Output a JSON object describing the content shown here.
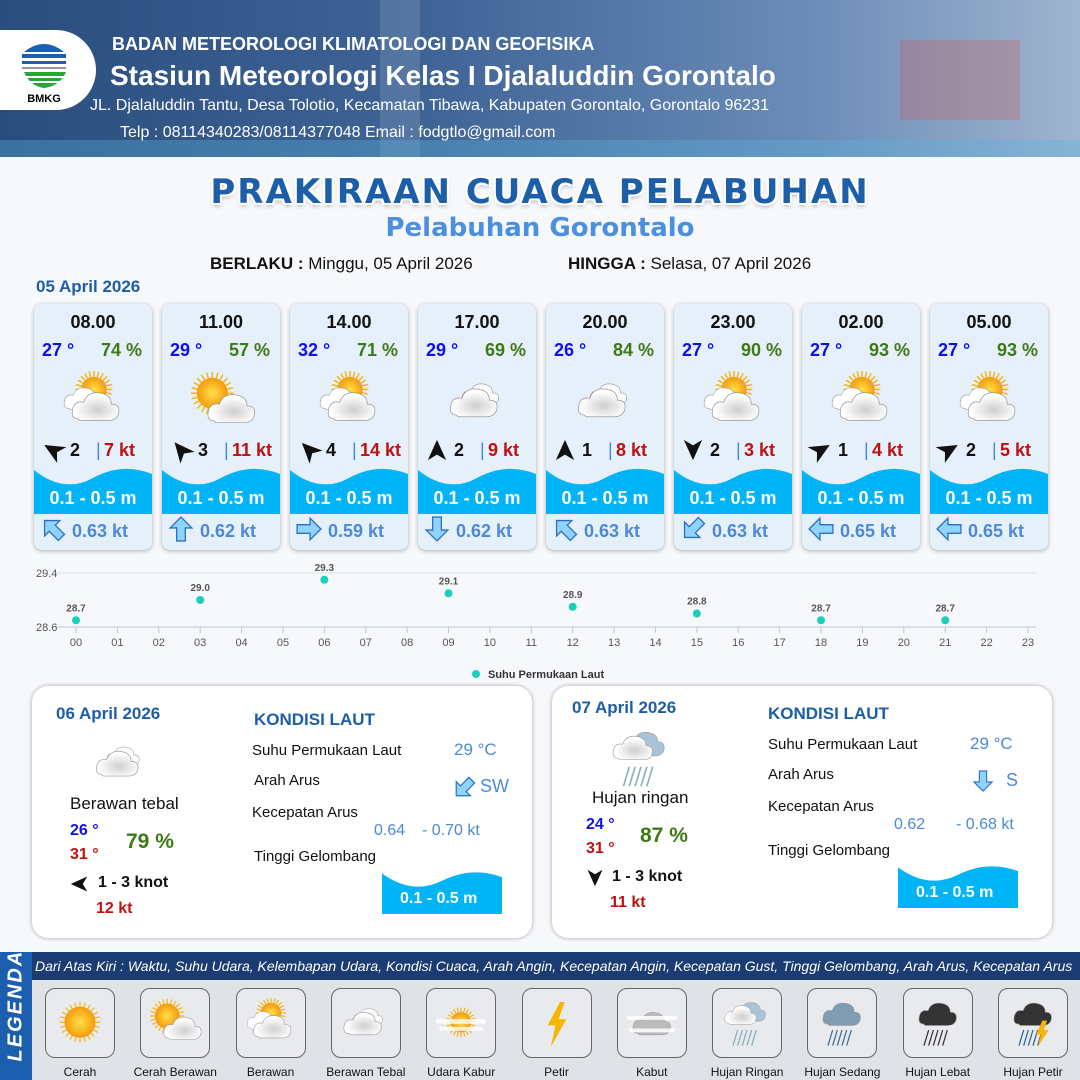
{
  "header": {
    "org": "BADAN METEOROLOGI KLIMATOLOGI DAN GEOFISIKA",
    "station": "Stasiun Meteorologi Kelas I Djalaluddin Gorontalo",
    "address": "JL. Djalaluddin Tantu, Desa Tolotio, Kecamatan Tibawa, Kabupaten Gorontalo, Gorontalo 96231",
    "contact": "Telp : 08114340283/08114377048 Email : fodgtlo@gmail.com",
    "logo_text": "BMKG"
  },
  "title": "PRAKIRAAN CUACA PELABUHAN",
  "subtitle": "Pelabuhan Gorontalo",
  "validity": {
    "from_label": "BERLAKU :",
    "from": "Minggu, 05 April 2026",
    "to_label": "HINGGA :",
    "to": "Selasa, 07 April 2026"
  },
  "day1_date": "05 April 2026",
  "colors": {
    "temp": "#1010ee",
    "humidity": "#3d7a16",
    "gust": "#c01010",
    "wave": "#00b4f5",
    "current": "#4a8ad8",
    "accent": "#1d5ea8"
  },
  "forecast": [
    {
      "time": "08.00",
      "temp": "27 °",
      "hum": "74 %",
      "cond": "berawan",
      "wind_dir_deg": 300,
      "wind": "2",
      "gust": "7 kt",
      "wave": "0.1 - 0.5 m",
      "cur_dir_deg": 315,
      "cur": "0.63 kt"
    },
    {
      "time": "11.00",
      "temp": "29 °",
      "hum": "57 %",
      "cond": "cerah-berawan",
      "wind_dir_deg": 320,
      "wind": "3",
      "gust": "11 kt",
      "wave": "0.1 - 0.5 m",
      "cur_dir_deg": 0,
      "cur": "0.62 kt"
    },
    {
      "time": "14.00",
      "temp": "32 °",
      "hum": "71 %",
      "cond": "berawan",
      "wind_dir_deg": 315,
      "wind": "4",
      "gust": "14 kt",
      "wave": "0.1 - 0.5 m",
      "cur_dir_deg": 90,
      "cur": "0.59 kt"
    },
    {
      "time": "17.00",
      "temp": "29 °",
      "hum": "69 %",
      "cond": "berawan-tebal",
      "wind_dir_deg": 0,
      "wind": "2",
      "gust": "9 kt",
      "wave": "0.1 - 0.5 m",
      "cur_dir_deg": 180,
      "cur": "0.62 kt"
    },
    {
      "time": "20.00",
      "temp": "26 °",
      "hum": "84 %",
      "cond": "berawan-tebal",
      "wind_dir_deg": 0,
      "wind": "1",
      "gust": "8 kt",
      "wave": "0.1 - 0.5 m",
      "cur_dir_deg": 315,
      "cur": "0.63 kt"
    },
    {
      "time": "23.00",
      "temp": "27 °",
      "hum": "90 %",
      "cond": "berawan",
      "wind_dir_deg": 180,
      "wind": "2",
      "gust": "3 kt",
      "wave": "0.1 - 0.5 m",
      "cur_dir_deg": 225,
      "cur": "0.63 kt"
    },
    {
      "time": "02.00",
      "temp": "27 °",
      "hum": "93 %",
      "cond": "berawan",
      "wind_dir_deg": 60,
      "wind": "1",
      "gust": "4 kt",
      "wave": "0.1 - 0.5 m",
      "cur_dir_deg": 270,
      "cur": "0.65 kt"
    },
    {
      "time": "05.00",
      "temp": "27 °",
      "hum": "93 %",
      "cond": "berawan",
      "wind_dir_deg": 60,
      "wind": "2",
      "gust": "5 kt",
      "wave": "0.1 - 0.5 m",
      "cur_dir_deg": 270,
      "cur": "0.65 kt"
    }
  ],
  "chart_data": {
    "type": "scatter",
    "x_ticks": [
      "00",
      "01",
      "02",
      "03",
      "04",
      "05",
      "06",
      "07",
      "08",
      "09",
      "10",
      "11",
      "12",
      "13",
      "14",
      "15",
      "16",
      "17",
      "18",
      "19",
      "20",
      "21",
      "22",
      "23"
    ],
    "y_ticks": [
      "28.6",
      "29.4"
    ],
    "ylim": [
      28.6,
      29.4
    ],
    "grid": true,
    "legend_placement": "bottom",
    "series": [
      {
        "name": "Suhu Permukaan Laut",
        "color": "#1ccfb8",
        "x": [
          0,
          3,
          6,
          9,
          12,
          15,
          18,
          21
        ],
        "values": [
          28.7,
          29.0,
          29.3,
          29.1,
          28.9,
          28.8,
          28.7,
          28.7
        ],
        "labels": [
          "28.7",
          "29.0",
          "29.3",
          "29.1",
          "28.9",
          "28.8",
          "28.7",
          "28.7"
        ]
      }
    ]
  },
  "days": [
    {
      "date": "06 April 2026",
      "cond": "berawan-tebal",
      "cond_label": "Berawan tebal",
      "tmin": "26 °",
      "tmax": "31 °",
      "hum": "79 %",
      "wind_dir_deg": 270,
      "wind": "1 - 3 knot",
      "gust": "12 kt",
      "sea_title": "KONDISI LAUT",
      "sst_label": "Suhu Permukaan Laut",
      "sst": "29 °C",
      "cur_dir_label": "Arah Arus",
      "cur_dir_deg": 225,
      "cur_dir": "SW",
      "cur_speed_label": "Kecepatan Arus",
      "cur_speed_min": "0.64",
      "cur_speed_max": "- 0.70 kt",
      "wave_label": "Tinggi Gelombang",
      "wave": "0.1 - 0.5 m"
    },
    {
      "date": "07 April 2026",
      "cond": "hujan-ringan",
      "cond_label": "Hujan ringan",
      "tmin": "24 °",
      "tmax": "31 °",
      "hum": "87 %",
      "wind_dir_deg": 180,
      "wind": "1 - 3 knot",
      "gust": "11 kt",
      "sea_title": "KONDISI LAUT",
      "sst_label": "Suhu Permukaan Laut",
      "sst": "29 °C",
      "cur_dir_label": "Arah Arus",
      "cur_dir_deg": 180,
      "cur_dir": "S",
      "cur_speed_label": "Kecepatan Arus",
      "cur_speed_min": "0.62",
      "cur_speed_max": "- 0.68 kt",
      "wave_label": "Tinggi Gelombang",
      "wave": "0.1 - 0.5 m"
    }
  ],
  "legend": {
    "side_label": "LEGENDA",
    "description": "Dari Atas Kiri : Waktu, Suhu Udara, Kelembapan Udara, Kondisi Cuaca, Arah Angin, Kecepatan Angin, Kecepatan Gust, Tinggi Gelombang, Arah Arus, Kecepatan Arus",
    "items": [
      {
        "icon": "cerah",
        "label": "Cerah"
      },
      {
        "icon": "cerah-berawan",
        "label": "Cerah Berawan"
      },
      {
        "icon": "berawan",
        "label": "Berawan"
      },
      {
        "icon": "berawan-tebal",
        "label": "Berawan Tebal"
      },
      {
        "icon": "udara-kabur",
        "label": "Udara Kabur"
      },
      {
        "icon": "petir",
        "label": "Petir"
      },
      {
        "icon": "kabut",
        "label": "Kabut"
      },
      {
        "icon": "hujan-ringan",
        "label": "Hujan Ringan"
      },
      {
        "icon": "hujan-sedang",
        "label": "Hujan Sedang"
      },
      {
        "icon": "hujan-lebat",
        "label": "Hujan Lebat"
      },
      {
        "icon": "hujan-petir",
        "label": "Hujan Petir"
      }
    ]
  }
}
